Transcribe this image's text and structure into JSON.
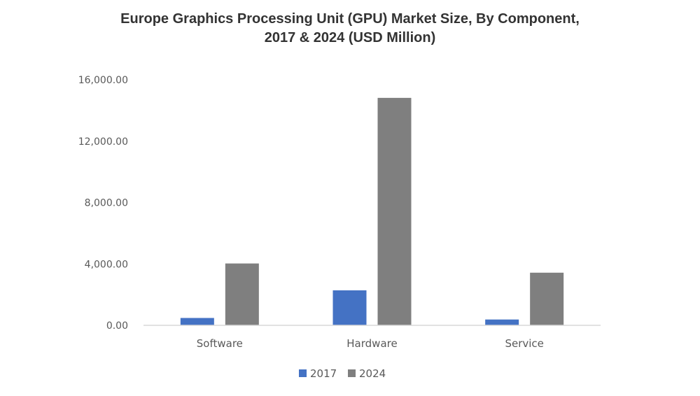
{
  "chart_data": {
    "type": "bar",
    "title_lines": [
      "Europe Graphics Processing Unit (GPU) Market Size, By Component,",
      "2017 & 2024 (USD Million)"
    ],
    "categories": [
      "Software",
      "Hardware",
      "Service"
    ],
    "series": [
      {
        "name": "2017",
        "color": "#4472c4",
        "values": [
          480,
          2280,
          380
        ]
      },
      {
        "name": "2024",
        "color": "#7f7f7f",
        "values": [
          4030,
          14820,
          3430
        ]
      }
    ],
    "y_ticks": [
      "0.00",
      "4,000.00",
      "8,000.00",
      "12,000.00",
      "16,000.00"
    ],
    "ylim": [
      0,
      16000
    ],
    "grid": false,
    "legend_position": "bottom"
  }
}
